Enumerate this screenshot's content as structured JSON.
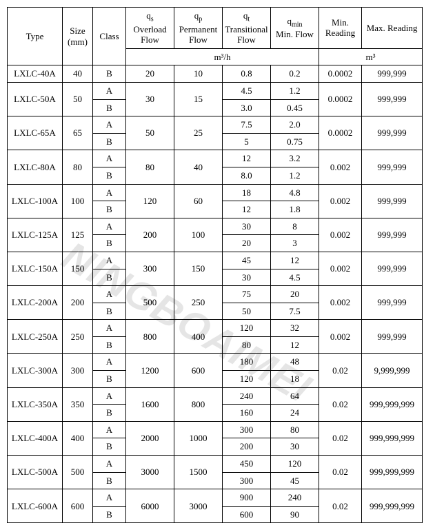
{
  "watermark": "NINGBOAIMEI",
  "headers": {
    "type": "Type",
    "size": "Size\n(mm)",
    "class": "Class",
    "qs_top": "qₛ",
    "qs": "Overload Flow",
    "qp_top": "qₚ",
    "qp": "Permanent Flow",
    "qt_top": "qₜ",
    "qt": "Transitional Flow",
    "qmin_top": "q_min",
    "qmin": "Min. Flow",
    "minRead": "Min. Reading",
    "maxRead": "Max. Reading",
    "unit_flow": "m³/h",
    "unit_read": "m³"
  },
  "rows": [
    {
      "type": "LXLC-40A",
      "size": "40",
      "classes": [
        "B"
      ],
      "qs": "20",
      "qp": "10",
      "qt": [
        "0.8"
      ],
      "qmin": [
        "0.2"
      ],
      "minRead": "0.0002",
      "maxRead": "999,999"
    },
    {
      "type": "LXLC-50A",
      "size": "50",
      "classes": [
        "A",
        "B"
      ],
      "qs": "30",
      "qp": "15",
      "qt": [
        "4.5",
        "3.0"
      ],
      "qmin": [
        "1.2",
        "0.45"
      ],
      "minRead": "0.0002",
      "maxRead": "999,999"
    },
    {
      "type": "LXLC-65A",
      "size": "65",
      "classes": [
        "A",
        "B"
      ],
      "qs": "50",
      "qp": "25",
      "qt": [
        "7.5",
        "5"
      ],
      "qmin": [
        "2.0",
        "0.75"
      ],
      "minRead": "0.0002",
      "maxRead": "999,999"
    },
    {
      "type": "LXLC-80A",
      "size": "80",
      "classes": [
        "A",
        "B"
      ],
      "qs": "80",
      "qp": "40",
      "qt": [
        "12",
        "8.0"
      ],
      "qmin": [
        "3.2",
        "1.2"
      ],
      "minRead": "0.002",
      "maxRead": "999,999"
    },
    {
      "type": "LXLC-100A",
      "size": "100",
      "classes": [
        "A",
        "B"
      ],
      "qs": "120",
      "qp": "60",
      "qt": [
        "18",
        "12"
      ],
      "qmin": [
        "4.8",
        "1.8"
      ],
      "minRead": "0.002",
      "maxRead": "999,999"
    },
    {
      "type": "LXLC-125A",
      "size": "125",
      "classes": [
        "A",
        "B"
      ],
      "qs": "200",
      "qp": "100",
      "qt": [
        "30",
        "20"
      ],
      "qmin": [
        "8",
        "3"
      ],
      "minRead": "0.002",
      "maxRead": "999,999"
    },
    {
      "type": "LXLC-150A",
      "size": "150",
      "classes": [
        "A",
        "B"
      ],
      "qs": "300",
      "qp": "150",
      "qt": [
        "45",
        "30"
      ],
      "qmin": [
        "12",
        "4.5"
      ],
      "minRead": "0.002",
      "maxRead": "999,999"
    },
    {
      "type": "LXLC-200A",
      "size": "200",
      "classes": [
        "A",
        "B"
      ],
      "qs": "500",
      "qp": "250",
      "qt": [
        "75",
        "50"
      ],
      "qmin": [
        "20",
        "7.5"
      ],
      "minRead": "0.002",
      "maxRead": "999,999"
    },
    {
      "type": "LXLC-250A",
      "size": "250",
      "classes": [
        "A",
        "B"
      ],
      "qs": "800",
      "qp": "400",
      "qt": [
        "120",
        "80"
      ],
      "qmin": [
        "32",
        "12"
      ],
      "minRead": "0.002",
      "maxRead": "999,999"
    },
    {
      "type": "LXLC-300A",
      "size": "300",
      "classes": [
        "A",
        "B"
      ],
      "qs": "1200",
      "qp": "600",
      "qt": [
        "180",
        "120"
      ],
      "qmin": [
        "48",
        "18"
      ],
      "minRead": "0.02",
      "maxRead": "9,999,999"
    },
    {
      "type": "LXLC-350A",
      "size": "350",
      "classes": [
        "A",
        "B"
      ],
      "qs": "1600",
      "qp": "800",
      "qt": [
        "240",
        "160"
      ],
      "qmin": [
        "64",
        "24"
      ],
      "minRead": "0.02",
      "maxRead": "999,999,999"
    },
    {
      "type": "LXLC-400A",
      "size": "400",
      "classes": [
        "A",
        "B"
      ],
      "qs": "2000",
      "qp": "1000",
      "qt": [
        "300",
        "200"
      ],
      "qmin": [
        "80",
        "30"
      ],
      "minRead": "0.02",
      "maxRead": "999,999,999"
    },
    {
      "type": "LXLC-500A",
      "size": "500",
      "classes": [
        "A",
        "B"
      ],
      "qs": "3000",
      "qp": "1500",
      "qt": [
        "450",
        "300"
      ],
      "qmin": [
        "120",
        "45"
      ],
      "minRead": "0.02",
      "maxRead": "999,999,999"
    },
    {
      "type": "LXLC-600A",
      "size": "600",
      "classes": [
        "A",
        "B"
      ],
      "qs": "6000",
      "qp": "3000",
      "qt": [
        "900",
        "600"
      ],
      "qmin": [
        "240",
        "90"
      ],
      "minRead": "0.02",
      "maxRead": "999,999,999"
    }
  ]
}
